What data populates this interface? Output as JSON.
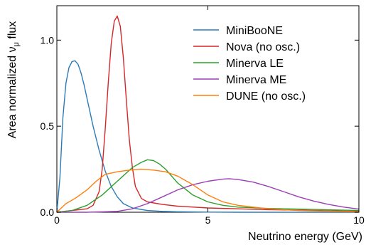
{
  "chart_data": {
    "type": "line",
    "title": "",
    "xlabel": "Neutrino energy (GeV)",
    "ylabel_parts": [
      "Area normalized ",
      "ν",
      "μ",
      " flux"
    ],
    "xlim": [
      0,
      10
    ],
    "ylim": [
      0,
      1.2
    ],
    "x_ticks": [
      0,
      5,
      10
    ],
    "x_tick_labels": [
      "0",
      "5",
      "10"
    ],
    "y_ticks": [
      0,
      0.5,
      1.0
    ],
    "y_tick_labels": [
      "0.0",
      "0.5",
      "1.0"
    ],
    "grid": false,
    "legend_position": "top-right",
    "series": [
      {
        "name": "MiniBooNE",
        "color": "#2b7bba",
        "x": [
          0,
          0.1,
          0.2,
          0.3,
          0.4,
          0.5,
          0.6,
          0.7,
          0.8,
          0.9,
          1.0,
          1.2,
          1.4,
          1.6,
          1.8,
          2.0,
          2.2,
          2.5,
          3.0,
          3.5,
          4.0,
          5.0,
          6.0,
          8.0,
          10.0
        ],
        "y": [
          0.0,
          0.2,
          0.55,
          0.75,
          0.84,
          0.875,
          0.88,
          0.86,
          0.81,
          0.74,
          0.66,
          0.5,
          0.36,
          0.24,
          0.15,
          0.09,
          0.05,
          0.025,
          0.01,
          0.005,
          0.003,
          0.001,
          0.0,
          0.0,
          0.0
        ]
      },
      {
        "name": "Nova (no osc.)",
        "color": "#d62728",
        "x": [
          0,
          0.5,
          1.0,
          1.2,
          1.4,
          1.5,
          1.6,
          1.7,
          1.8,
          1.9,
          2.0,
          2.1,
          2.2,
          2.3,
          2.4,
          2.5,
          2.6,
          2.8,
          3.0,
          3.5,
          4.0,
          5.0,
          6.0,
          7.0,
          8.0,
          10.0
        ],
        "y": [
          0.0,
          0.01,
          0.02,
          0.04,
          0.12,
          0.25,
          0.48,
          0.75,
          0.98,
          1.11,
          1.14,
          1.08,
          0.9,
          0.65,
          0.42,
          0.26,
          0.15,
          0.08,
          0.06,
          0.045,
          0.035,
          0.025,
          0.02,
          0.015,
          0.012,
          0.005
        ]
      },
      {
        "name": "Minerva LE",
        "color": "#2ca02c",
        "x": [
          0,
          0.5,
          1.0,
          1.5,
          2.0,
          2.5,
          2.8,
          3.0,
          3.2,
          3.4,
          3.6,
          4.0,
          4.5,
          5.0,
          5.5,
          6.0,
          7.0,
          8.0,
          9.0,
          10.0
        ],
        "y": [
          0.0,
          0.01,
          0.04,
          0.1,
          0.18,
          0.26,
          0.29,
          0.305,
          0.3,
          0.28,
          0.25,
          0.17,
          0.1,
          0.06,
          0.04,
          0.03,
          0.022,
          0.018,
          0.014,
          0.01
        ]
      },
      {
        "name": "Minerva ME",
        "color": "#9b3fb5",
        "x": [
          0,
          1.0,
          2.0,
          2.5,
          3.0,
          3.5,
          4.0,
          4.5,
          5.0,
          5.5,
          5.7,
          6.0,
          6.5,
          7.0,
          7.5,
          8.0,
          8.5,
          9.0,
          9.5,
          10.0
        ],
        "y": [
          0.0,
          0.0,
          0.005,
          0.02,
          0.05,
          0.09,
          0.13,
          0.16,
          0.18,
          0.193,
          0.195,
          0.19,
          0.175,
          0.15,
          0.12,
          0.09,
          0.065,
          0.045,
          0.03,
          0.018
        ]
      },
      {
        "name": "DUNE (no osc.)",
        "color": "#ff7f0e",
        "x": [
          0,
          0.3,
          0.6,
          1.0,
          1.3,
          1.6,
          2.0,
          2.4,
          2.8,
          3.2,
          3.6,
          4.0,
          4.5,
          5.0,
          5.5,
          6.0,
          7.0,
          8.0,
          9.0,
          10.0
        ],
        "y": [
          0.0,
          0.05,
          0.08,
          0.13,
          0.18,
          0.22,
          0.235,
          0.245,
          0.25,
          0.245,
          0.235,
          0.21,
          0.16,
          0.1,
          0.06,
          0.04,
          0.02,
          0.01,
          0.006,
          0.003
        ]
      }
    ]
  }
}
